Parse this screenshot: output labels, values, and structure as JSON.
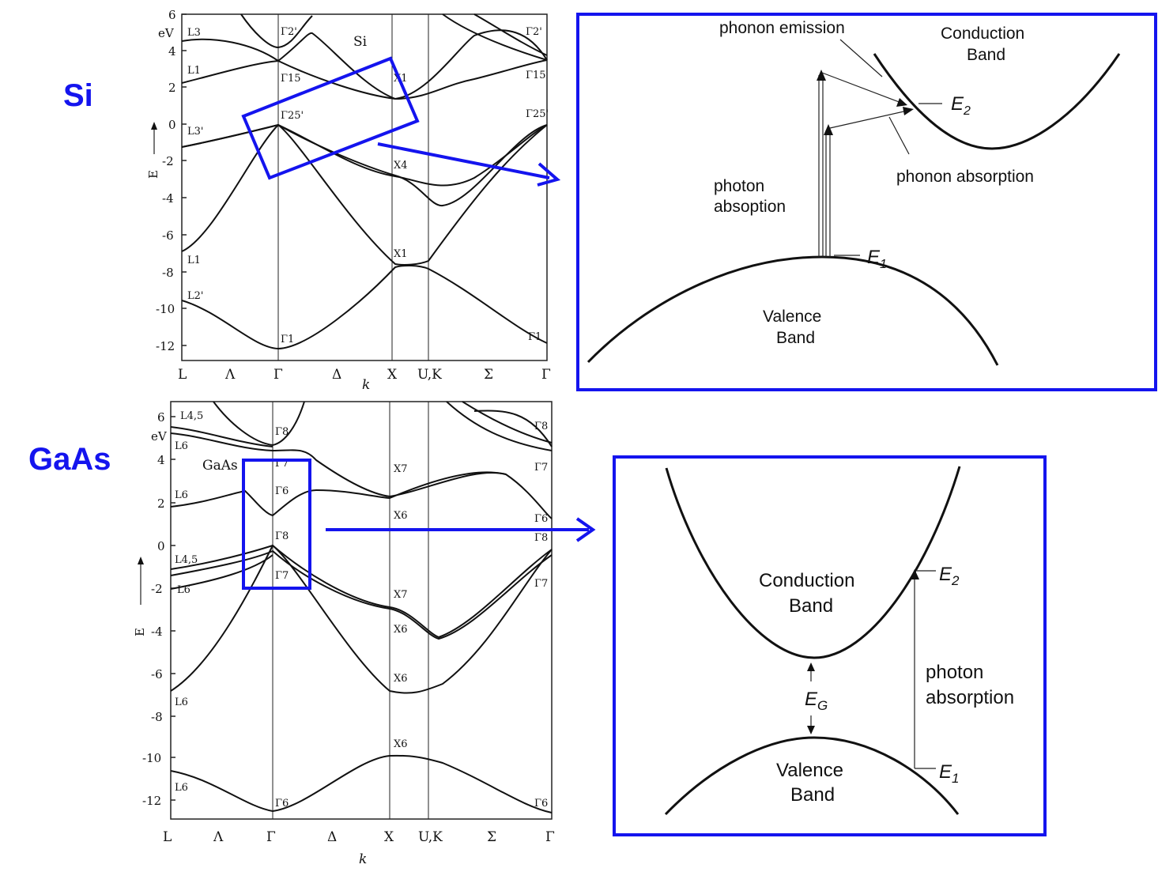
{
  "labels": {
    "si": "Si",
    "gaas": "GaAs"
  },
  "si_plot": {
    "unit": "eV",
    "material_label": "Si",
    "y_ticks": [
      "6",
      "4",
      "2",
      "0",
      "-2",
      "-4",
      "-6",
      "-8",
      "-10",
      "-12"
    ],
    "x_points": [
      "L",
      "Λ",
      "Γ",
      "Δ",
      "X",
      "U,K",
      "Σ",
      "Γ"
    ],
    "x_label": "k",
    "y_label": "E",
    "symmetry_labels": [
      "L3",
      "L1",
      "L3'",
      "L1",
      "L2'",
      "Γ2'",
      "Γ15",
      "Γ25'",
      "Γ1",
      "X1",
      "X4",
      "X1",
      "Γ2'",
      "Γ15",
      "Γ25'",
      "Γ1"
    ]
  },
  "gaas_plot": {
    "unit": "eV",
    "material_label": "GaAs",
    "y_ticks": [
      "6",
      "4",
      "2",
      "0",
      "-2",
      "-4",
      "-6",
      "-8",
      "-10",
      "-12"
    ],
    "x_points": [
      "L",
      "Λ",
      "Γ",
      "Δ",
      "X",
      "U,K",
      "Σ",
      "Γ"
    ],
    "x_label": "k",
    "y_label": "E",
    "symmetry_labels": [
      "L4,5",
      "L6",
      "L6",
      "L4,5",
      "L6",
      "L6",
      "L6",
      "Γ8",
      "Γ7",
      "Γ6",
      "Γ8",
      "Γ7",
      "Γ6",
      "X7",
      "X6",
      "X7",
      "X6",
      "X6",
      "X6",
      "Γ8",
      "Γ7",
      "Γ6",
      "Γ8",
      "Γ7",
      "Γ6"
    ]
  },
  "indirect_diagram": {
    "phonon_emission": "phonon emission",
    "conduction_line1": "Conduction",
    "conduction_line2": "Band",
    "e2": "E",
    "e2_sub": "2",
    "photon_line1": "photon",
    "photon_line2": "absoption",
    "phonon_absorption": "phonon absorption",
    "e1": "E",
    "e1_sub": "1",
    "valence_line1": "Valence",
    "valence_line2": "Band"
  },
  "direct_diagram": {
    "conduction_line1": "Conduction",
    "conduction_line2": "Band",
    "e2": "E",
    "e2_sub": "2",
    "eg": "E",
    "eg_sub": "G",
    "photon_line1": "photon",
    "photon_line2": "absorption",
    "e1": "E",
    "e1_sub": "1",
    "valence_line1": "Valence",
    "valence_line2": "Band"
  },
  "colors": {
    "highlight": "#1414ee",
    "ink": "#111111"
  }
}
